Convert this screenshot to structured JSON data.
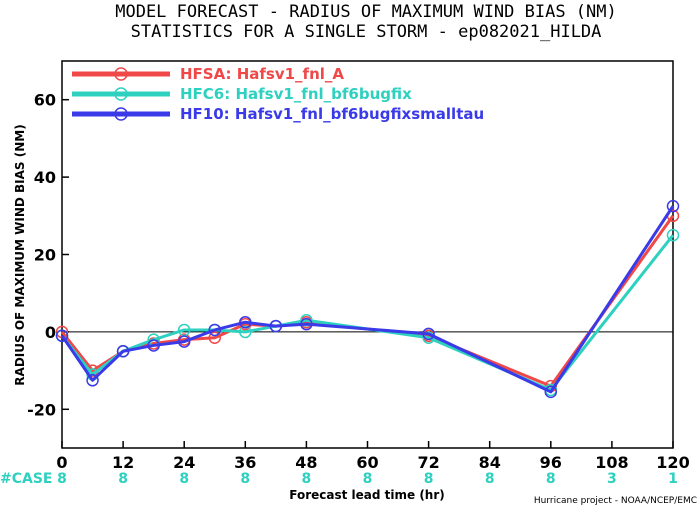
{
  "title_line1": "MODEL FORECAST - RADIUS OF MAXIMUM WIND BIAS (NM)",
  "title_line2": "STATISTICS FOR A SINGLE STORM - ep082021_HILDA",
  "case_label": "#CASE",
  "credit": "Hurricane project - NOAA/NCEP/EMC",
  "colors": {
    "hfsa": "#f04848",
    "hfc6": "#2ed0c0",
    "hf10": "#3a3ae8",
    "case": "#2ed0c0",
    "zero": "#000000"
  },
  "chart_data": {
    "type": "line",
    "title": "MODEL FORECAST - RADIUS OF MAXIMUM WIND BIAS (NM)",
    "subtitle": "STATISTICS FOR A SINGLE STORM - ep082021_HILDA",
    "xlabel": "Forecast lead time (hr)",
    "ylabel": "RADIUS OF MAXIMUM WIND BIAS (NM)",
    "xlim": [
      0,
      120
    ],
    "ylim": [
      -30,
      70
    ],
    "xticks": [
      0,
      12,
      24,
      36,
      48,
      60,
      72,
      84,
      96,
      108,
      120
    ],
    "yticks": [
      -20,
      0,
      20,
      40,
      60
    ],
    "legend_position": "top-left",
    "grid": false,
    "series": [
      {
        "name": "HFSA: Hafsv1_fnl_A",
        "color": "#f04848",
        "x": [
          0,
          6,
          12,
          18,
          24,
          30,
          36,
          42,
          48,
          72,
          96,
          120
        ],
        "y": [
          0,
          -10,
          -5,
          -3,
          -2,
          -1.5,
          2,
          1.5,
          2.5,
          -1,
          -14,
          30
        ]
      },
      {
        "name": "HFC6: Hafsv1_fnl_bf6bugfix",
        "color": "#2ed0c0",
        "x": [
          0,
          6,
          12,
          18,
          24,
          30,
          36,
          42,
          48,
          72,
          96,
          120
        ],
        "y": [
          -1,
          -11,
          -5,
          -2,
          0.5,
          0.5,
          0,
          1.5,
          3,
          -1.5,
          -15,
          25
        ]
      },
      {
        "name": "HF10: Hafsv1_fnl_bf6bugfixsmalltau",
        "color": "#3a3ae8",
        "x": [
          0,
          6,
          12,
          18,
          24,
          30,
          36,
          42,
          48,
          72,
          96,
          120
        ],
        "y": [
          -1,
          -12.5,
          -5,
          -3.5,
          -2.5,
          0.5,
          2.5,
          1.5,
          2,
          -0.5,
          -15.5,
          32.5
        ]
      }
    ],
    "case_counts": [
      {
        "x": 0,
        "count": "8"
      },
      {
        "x": 12,
        "count": "8"
      },
      {
        "x": 24,
        "count": "8"
      },
      {
        "x": 36,
        "count": "8"
      },
      {
        "x": 48,
        "count": "8"
      },
      {
        "x": 60,
        "count": "8"
      },
      {
        "x": 72,
        "count": "8"
      },
      {
        "x": 84,
        "count": "8"
      },
      {
        "x": 96,
        "count": "8"
      },
      {
        "x": 108,
        "count": "3"
      },
      {
        "x": 120,
        "count": "1"
      }
    ]
  }
}
